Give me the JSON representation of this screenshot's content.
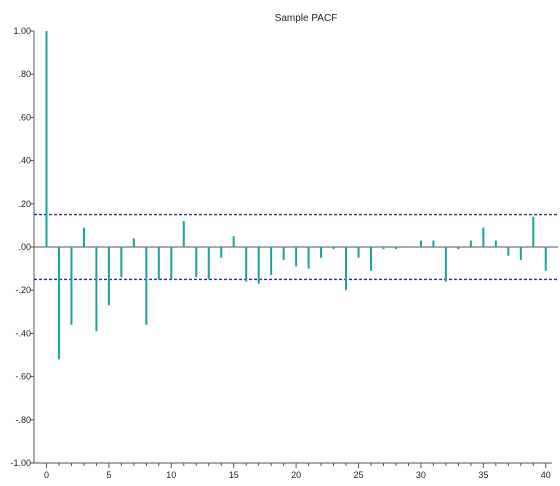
{
  "chart_data": {
    "type": "bar",
    "title": "Sample PACF",
    "xlabel": "",
    "ylabel": "",
    "xlim": [
      -1,
      40.5
    ],
    "ylim": [
      -1.0,
      1.0
    ],
    "x_ticks": [
      0,
      5,
      10,
      15,
      20,
      25,
      30,
      35,
      40
    ],
    "x_tick_labels": [
      "0",
      "5",
      "10",
      "15",
      "20",
      "25",
      "30",
      "35",
      "40"
    ],
    "y_ticks": [
      1.0,
      0.8,
      0.6,
      0.4,
      0.2,
      0.0,
      -0.2,
      -0.4,
      -0.6,
      -0.8,
      -1.0
    ],
    "y_tick_labels": [
      "1.00",
      ".80",
      ".60",
      ".40",
      ".20",
      ".00",
      "-.20",
      "-.40",
      "-.60",
      "-.80",
      "-1.00"
    ],
    "grid": false,
    "confidence_bounds": [
      0.15,
      -0.15
    ],
    "colors": {
      "bar": "#1aa39a",
      "bound": "#2a2a9a",
      "axis": "#555555"
    },
    "x": [
      0,
      1,
      2,
      3,
      4,
      5,
      6,
      7,
      8,
      9,
      10,
      11,
      12,
      13,
      14,
      15,
      16,
      17,
      18,
      19,
      20,
      21,
      22,
      23,
      24,
      25,
      26,
      27,
      28,
      29,
      30,
      31,
      32,
      33,
      34,
      35,
      36,
      37,
      38,
      39,
      40
    ],
    "values": [
      1.0,
      -0.52,
      -0.36,
      0.09,
      -0.39,
      -0.27,
      -0.14,
      0.04,
      -0.36,
      -0.15,
      -0.15,
      0.12,
      -0.14,
      -0.15,
      -0.05,
      0.05,
      -0.16,
      -0.17,
      -0.13,
      -0.06,
      -0.09,
      -0.1,
      -0.05,
      -0.01,
      -0.2,
      -0.05,
      -0.11,
      -0.01,
      -0.01,
      0.0,
      0.03,
      0.03,
      -0.16,
      -0.01,
      0.03,
      0.09,
      0.03,
      -0.04,
      -0.06,
      0.14,
      -0.11
    ]
  }
}
